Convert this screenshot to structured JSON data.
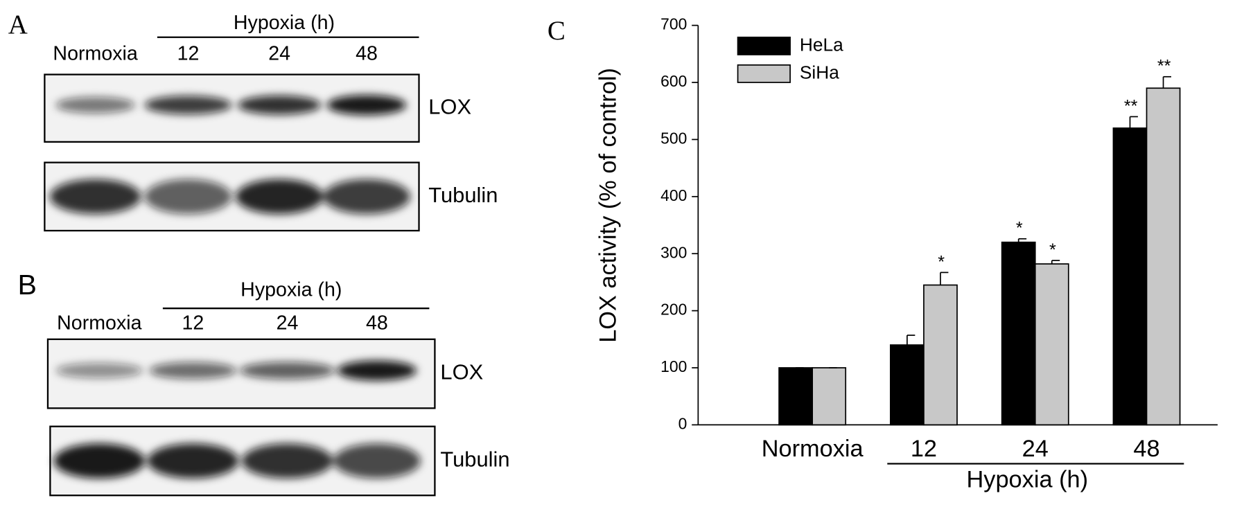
{
  "panel_a": {
    "label": "A",
    "group_label": "Hypoxia (h)",
    "lanes": [
      "Normoxia",
      "12",
      "24",
      "48"
    ],
    "blots": [
      "LOX",
      "Tubulin"
    ]
  },
  "panel_b": {
    "label": "B",
    "group_label": "Hypoxia (h)",
    "lanes": [
      "Normoxia",
      "12",
      "24",
      "48"
    ],
    "blots": [
      "LOX",
      "Tubulin"
    ]
  },
  "chart_data": {
    "type": "bar",
    "panel_label": "C",
    "ylabel": "LOX activity (% of control)",
    "categories": [
      "Normoxia",
      "12",
      "24",
      "48"
    ],
    "group_label": "Hypoxia (h)",
    "series": [
      {
        "name": "HeLa",
        "color": "#000000",
        "values": [
          100,
          140,
          320,
          520
        ],
        "errors": [
          0,
          17,
          6,
          20
        ],
        "annotations": [
          null,
          null,
          "*",
          "**"
        ]
      },
      {
        "name": "SiHa",
        "color": "#c8c8c8",
        "values": [
          100,
          245,
          282,
          590
        ],
        "errors": [
          0,
          22,
          6,
          20
        ],
        "annotations": [
          null,
          "*",
          "*",
          "**"
        ]
      }
    ],
    "ylim": [
      0,
      700
    ],
    "yticks": [
      0,
      100,
      200,
      300,
      400,
      500,
      600,
      700
    ],
    "legend": "upper-left"
  }
}
